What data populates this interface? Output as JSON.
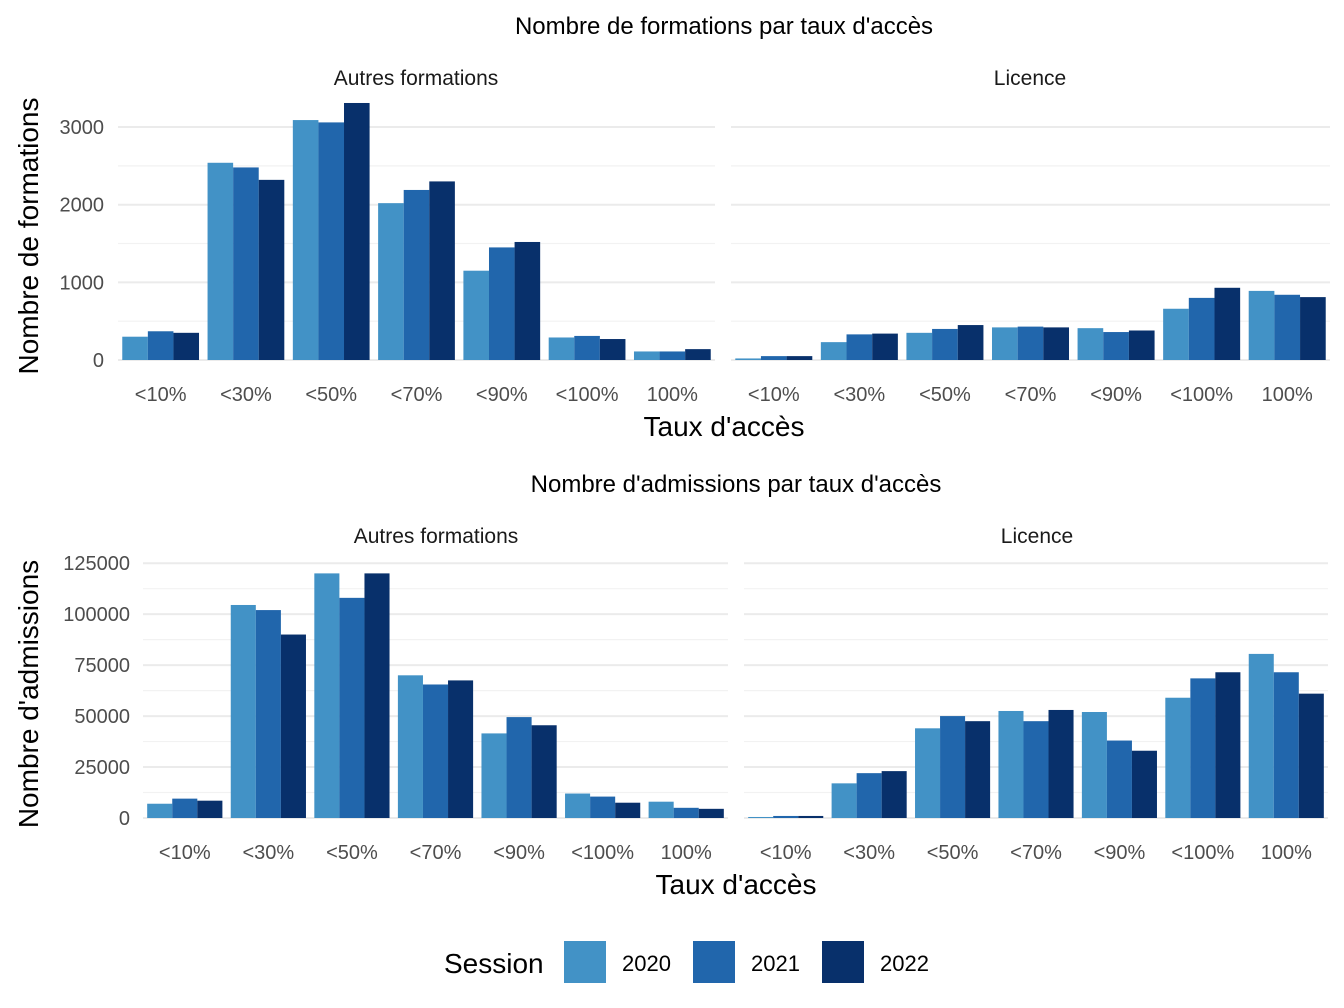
{
  "colors": {
    "2020": "#4292c6",
    "2021": "#2166ac",
    "2022": "#08306b"
  },
  "legend": {
    "title": "Session",
    "items": [
      "2020",
      "2021",
      "2022"
    ]
  },
  "chart_data": [
    {
      "type": "bar",
      "title": "Nombre de formations par taux d'accès",
      "xlabel": "Taux d'accès",
      "ylabel": "Nombre de formations",
      "ylim": [
        0,
        3400
      ],
      "yticks": [
        0,
        1000,
        2000,
        3000
      ],
      "ytick_labels": [
        "0",
        "1000",
        "2000",
        "3000"
      ],
      "categories": [
        "<10%",
        "<30%",
        "<50%",
        "<70%",
        "<90%",
        "<100%",
        "100%"
      ],
      "facets": [
        {
          "name": "Autres formations",
          "series": [
            {
              "name": "2020",
              "values": [
                300,
                2540,
                3090,
                2020,
                1150,
                290,
                110
              ]
            },
            {
              "name": "2021",
              "values": [
                370,
                2480,
                3060,
                2190,
                1450,
                310,
                110
              ]
            },
            {
              "name": "2022",
              "values": [
                350,
                2320,
                3310,
                2300,
                1520,
                270,
                140
              ]
            }
          ]
        },
        {
          "name": "Licence",
          "series": [
            {
              "name": "2020",
              "values": [
                20,
                230,
                350,
                420,
                410,
                660,
                890
              ]
            },
            {
              "name": "2021",
              "values": [
                50,
                330,
                400,
                430,
                360,
                800,
                840
              ]
            },
            {
              "name": "2022",
              "values": [
                50,
                340,
                450,
                420,
                380,
                930,
                810
              ]
            }
          ]
        }
      ]
    },
    {
      "type": "bar",
      "title": "Nombre d'admissions par taux d'accès",
      "xlabel": "Taux d'accès",
      "ylabel": "Nombre d'admissions",
      "ylim": [
        0,
        130000
      ],
      "yticks": [
        0,
        25000,
        50000,
        75000,
        100000,
        125000
      ],
      "ytick_labels": [
        "0",
        "25000",
        "50000",
        "75000",
        "100000",
        "125000"
      ],
      "categories": [
        "<10%",
        "<30%",
        "<50%",
        "<70%",
        "<90%",
        "<100%",
        "100%"
      ],
      "facets": [
        {
          "name": "Autres formations",
          "series": [
            {
              "name": "2020",
              "values": [
                7000,
                104500,
                120000,
                70000,
                41500,
                12000,
                8000
              ]
            },
            {
              "name": "2021",
              "values": [
                9500,
                102000,
                108000,
                65500,
                49500,
                10500,
                5000
              ]
            },
            {
              "name": "2022",
              "values": [
                8500,
                90000,
                120000,
                67500,
                45500,
                7500,
                4500
              ]
            }
          ]
        },
        {
          "name": "Licence",
          "series": [
            {
              "name": "2020",
              "values": [
                500,
                17000,
                44000,
                52500,
                52000,
                59000,
                80500
              ]
            },
            {
              "name": "2021",
              "values": [
                1000,
                22000,
                50000,
                47500,
                38000,
                68500,
                71500
              ]
            },
            {
              "name": "2022",
              "values": [
                1000,
                23000,
                47500,
                53000,
                33000,
                71500,
                61000
              ]
            }
          ]
        }
      ]
    }
  ]
}
